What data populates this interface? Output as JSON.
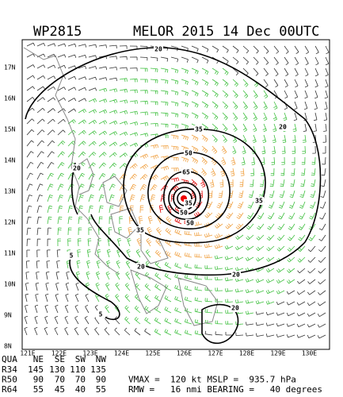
{
  "header": {
    "id": "WP2815",
    "title": "MELOR 2015 14 Dec 00UTC"
  },
  "map": {
    "lat_labels": [
      "17N",
      "16N",
      "15N",
      "14N",
      "13N",
      "12N",
      "11N",
      "10N",
      "9N",
      "8N"
    ],
    "lon_labels": [
      "121E",
      "122E",
      "123E",
      "124E",
      "125E",
      "126E",
      "127E",
      "128E",
      "129E",
      "130E"
    ],
    "contour_labels": [
      "20",
      "20",
      "20",
      "35",
      "50",
      "65",
      "35",
      "50",
      "50",
      "35",
      "35",
      "20",
      "5",
      "20",
      "20",
      "5"
    ]
  },
  "table": {
    "header": [
      "QUA",
      "NE",
      "SE",
      "SW",
      "NW"
    ],
    "rows": [
      [
        "R34",
        "145",
        "130",
        "110",
        "135"
      ],
      [
        "R50",
        "90",
        "70",
        "70",
        "90"
      ],
      [
        "R64",
        "55",
        "45",
        "40",
        "55"
      ]
    ]
  },
  "info": [
    "VMAX =  120 kt MSLP =  935.7 hPa",
    "RMW =   16 nmi BEARING =   40 degrees"
  ]
}
